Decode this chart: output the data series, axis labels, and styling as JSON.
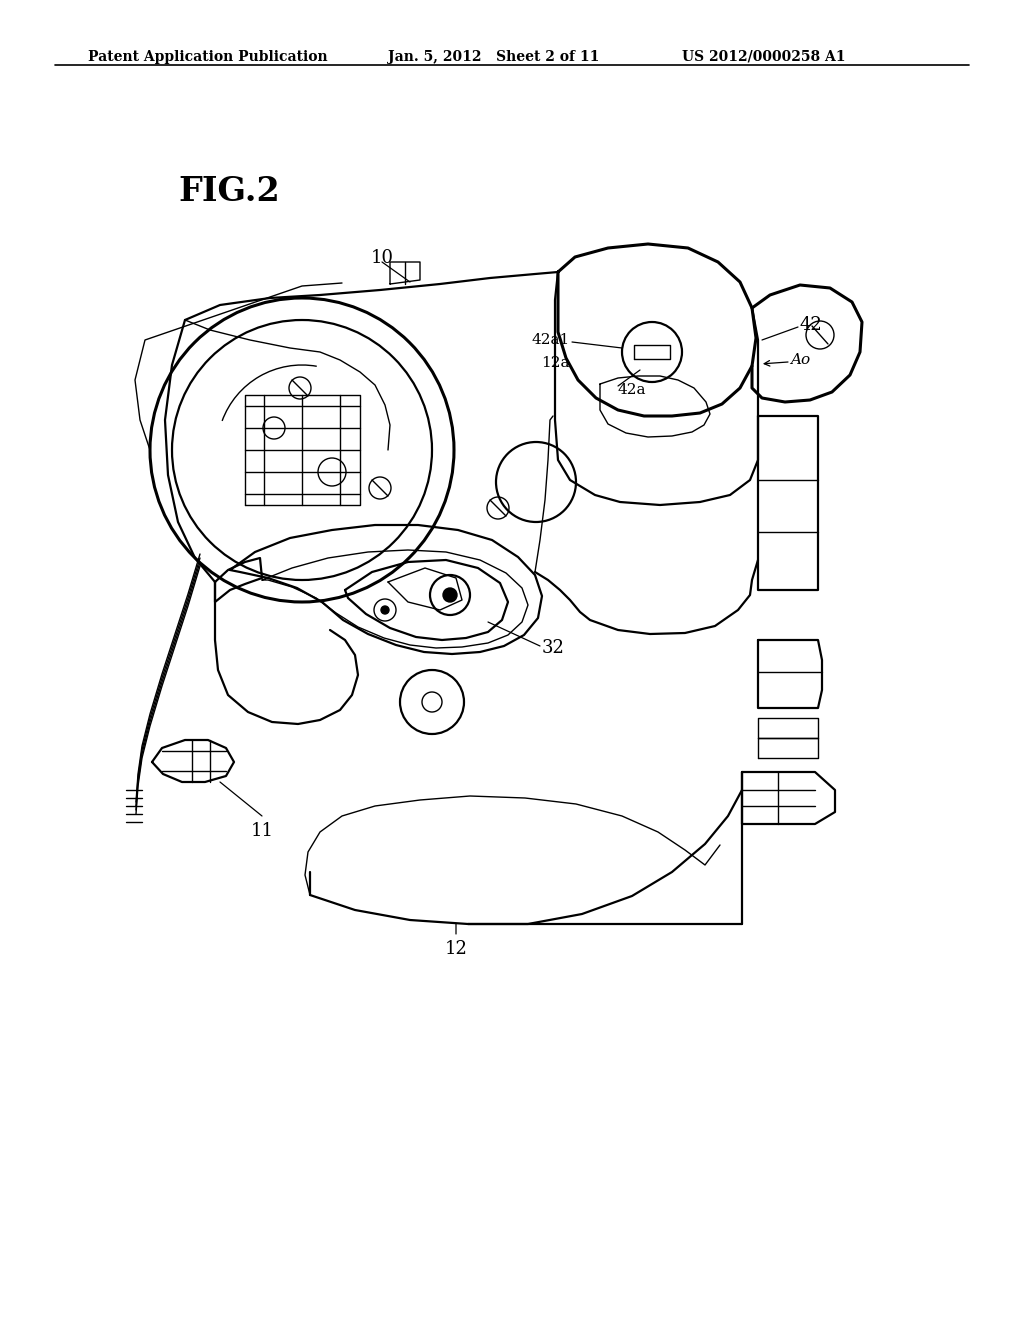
{
  "bg_color": "#ffffff",
  "line_color": "#1a1a1a",
  "header_left": "Patent Application Publication",
  "header_center": "Jan. 5, 2012   Sheet 2 of 11",
  "header_right": "US 2012/0000258 A1",
  "fig_label": "FIG.2",
  "header_fontsize": 10,
  "fig_label_fontsize": 24,
  "label_fontsize": 13,
  "small_label_fontsize": 11
}
